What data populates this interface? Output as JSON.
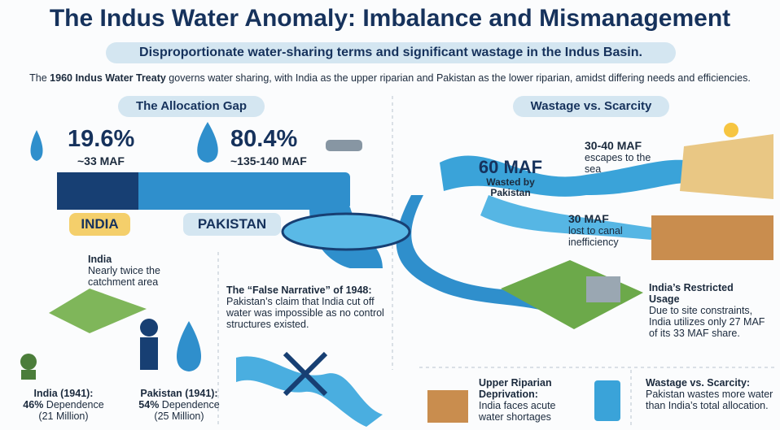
{
  "header": {
    "title": "The Indus Water Anomaly: Imbalance and Mismanagement",
    "subtitle": "Disproportionate water-sharing terms and significant wastage in the Indus Basin.",
    "intro_prefix": "The ",
    "intro_bold": "1960 Indus Water Treaty",
    "intro_rest": " governs water sharing, with India as the upper riparian and Pakistan as the lower riparian, amidst differing needs and efficiencies."
  },
  "allocation": {
    "heading": "The Allocation Gap",
    "india": {
      "share": "19.6%",
      "volume": "~33 MAF",
      "label": "INDIA"
    },
    "pakistan": {
      "share": "80.4%",
      "volume": "~135-140 MAF",
      "label": "PAKISTAN"
    }
  },
  "catchment": {
    "title": "India",
    "text": "Nearly twice the catchment area"
  },
  "false_narrative": {
    "title": "The “False Narrative” of 1948:",
    "text": "Pakistan’s claim that India cut off water was impossible as no control structures existed."
  },
  "dependence": [
    {
      "label": "India (1941):",
      "percent": "46%",
      "rest": " Dependence",
      "population": "(21 Million)"
    },
    {
      "label": "Pakistan (1941):",
      "percent": "54%",
      "rest": " Dependence",
      "population": "(25 Million)"
    }
  ],
  "wastage": {
    "heading": "Wastage vs. Scarcity",
    "wasted": {
      "amount": "60 MAF",
      "text": "Wasted by Pakistan"
    },
    "sea": {
      "amount": "30-40 MAF",
      "text": "escapes to the sea"
    },
    "canal": {
      "amount": "30 MAF",
      "text": "lost to canal inefficiency"
    },
    "restricted": {
      "title": "India’s Restricted Usage",
      "text": "Due to site constraints, India utilizes only 27 MAF of its 33 MAF share."
    },
    "deprivation": {
      "title": "Upper Riparian Deprivation:",
      "text": "India faces acute water shortages"
    },
    "scarcity": {
      "title": "Wastage vs. Scarcity:",
      "text": "Pakistan wastes more water than India’s total allocation."
    }
  }
}
